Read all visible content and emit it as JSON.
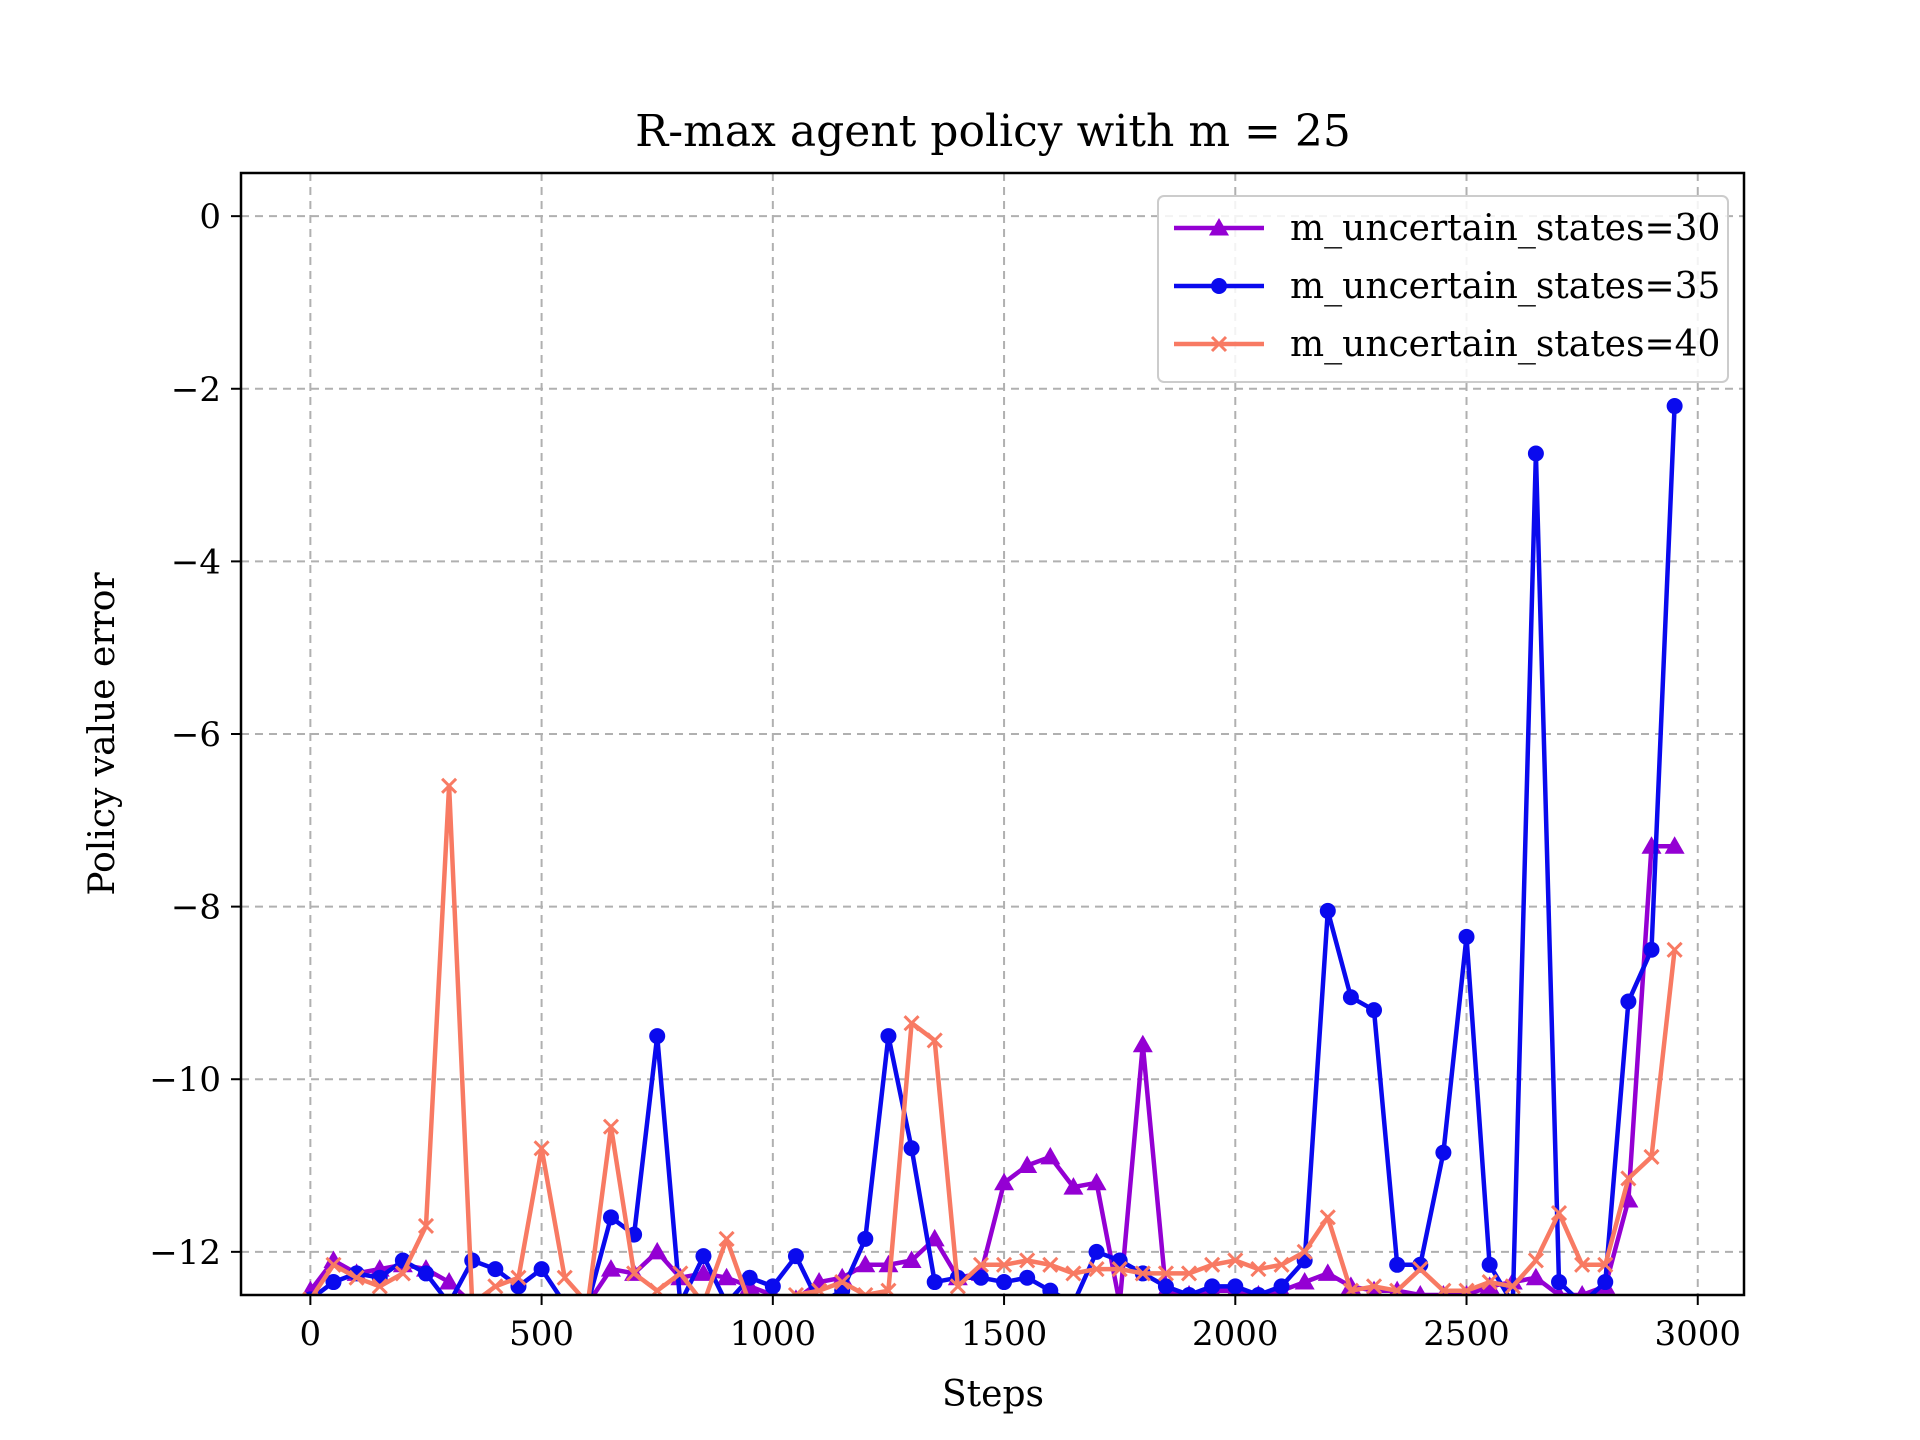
{
  "chart_data": {
    "type": "line",
    "title": "R-max agent policy with m = 25",
    "xlabel": "Steps",
    "ylabel": "Policy value error",
    "xlim": [
      -150,
      3100
    ],
    "ylim": [
      -12.5,
      0.5
    ],
    "xticks": [
      0,
      500,
      1000,
      1500,
      2000,
      2500,
      3000
    ],
    "xtick_labels": [
      "0",
      "500",
      "1000",
      "1500",
      "2000",
      "2500",
      "3000"
    ],
    "yticks": [
      0,
      -2,
      -4,
      -6,
      -8,
      -10,
      -12
    ],
    "ytick_labels": [
      "0",
      "−2",
      "−4",
      "−6",
      "−8",
      "−10",
      "−12"
    ],
    "grid": true,
    "legend_position": "top-right",
    "x": [
      0,
      50,
      100,
      150,
      200,
      250,
      300,
      350,
      400,
      450,
      500,
      550,
      600,
      650,
      700,
      750,
      800,
      850,
      900,
      950,
      1000,
      1050,
      1100,
      1150,
      1200,
      1250,
      1300,
      1350,
      1400,
      1450,
      1500,
      1550,
      1600,
      1650,
      1700,
      1750,
      1800,
      1850,
      1900,
      1950,
      2000,
      2050,
      2100,
      2150,
      2200,
      2250,
      2300,
      2350,
      2400,
      2450,
      2500,
      2550,
      2600,
      2650,
      2700,
      2750,
      2800,
      2850,
      2900,
      2950
    ],
    "series": [
      {
        "name": "m_uncertain_states=30",
        "color": "#9400d3",
        "marker": "triangle",
        "values": [
          -12.45,
          -12.1,
          -12.25,
          -12.2,
          -12.15,
          -12.2,
          -12.35,
          -12.6,
          -12.6,
          -12.6,
          -12.6,
          -12.6,
          -12.6,
          -12.2,
          -12.25,
          -12.0,
          -12.3,
          -12.25,
          -12.3,
          -12.4,
          -12.5,
          -12.55,
          -12.35,
          -12.3,
          -12.15,
          -12.15,
          -12.1,
          -11.85,
          -12.3,
          -12.25,
          -11.2,
          -11.0,
          -10.9,
          -11.25,
          -11.2,
          -12.6,
          -9.6,
          -12.45,
          -12.5,
          -12.45,
          -12.45,
          -12.5,
          -12.45,
          -12.35,
          -12.25,
          -12.4,
          -12.45,
          -12.45,
          -12.5,
          -12.5,
          -12.5,
          -12.4,
          -12.35,
          -12.3,
          -12.5,
          -12.5,
          -12.4,
          -11.4,
          -7.3,
          -7.3
        ]
      },
      {
        "name": "m_uncertain_states=35",
        "color": "#0a0aee",
        "marker": "circle",
        "values": [
          -12.55,
          -12.35,
          -12.25,
          -12.3,
          -12.1,
          -12.25,
          -12.6,
          -12.1,
          -12.2,
          -12.4,
          -12.2,
          -12.6,
          -12.6,
          -11.6,
          -11.8,
          -9.5,
          -12.6,
          -12.05,
          -12.6,
          -12.3,
          -12.4,
          -12.05,
          -12.6,
          -12.45,
          -11.85,
          -9.5,
          -10.8,
          -12.35,
          -12.3,
          -12.3,
          -12.35,
          -12.3,
          -12.45,
          -12.6,
          -12.0,
          -12.1,
          -12.25,
          -12.4,
          -12.5,
          -12.4,
          -12.4,
          -12.5,
          -12.4,
          -12.1,
          -8.05,
          -9.05,
          -9.2,
          -12.15,
          -12.15,
          -10.85,
          -8.35,
          -12.15,
          -12.6,
          -2.75,
          -12.35,
          -12.6,
          -12.35,
          -9.1,
          -8.5,
          -2.2
        ]
      },
      {
        "name": "m_uncertain_states=40",
        "color": "#f87a63",
        "marker": "x",
        "values": [
          -12.55,
          -12.15,
          -12.3,
          -12.4,
          -12.25,
          -11.7,
          -6.6,
          -12.6,
          -12.4,
          -12.3,
          -10.8,
          -12.3,
          -12.6,
          -10.55,
          -12.25,
          -12.45,
          -12.25,
          -12.6,
          -11.85,
          -12.6,
          -12.6,
          -12.5,
          -12.45,
          -12.35,
          -12.5,
          -12.45,
          -9.35,
          -9.55,
          -12.4,
          -12.15,
          -12.15,
          -12.1,
          -12.15,
          -12.25,
          -12.2,
          -12.2,
          -12.25,
          -12.25,
          -12.25,
          -12.15,
          -12.1,
          -12.2,
          -12.15,
          -12.0,
          -11.6,
          -12.45,
          -12.4,
          -12.45,
          -12.2,
          -12.45,
          -12.45,
          -12.35,
          -12.4,
          -12.1,
          -11.55,
          -12.15,
          -12.15,
          -11.15,
          -10.9,
          -8.5
        ]
      }
    ]
  }
}
